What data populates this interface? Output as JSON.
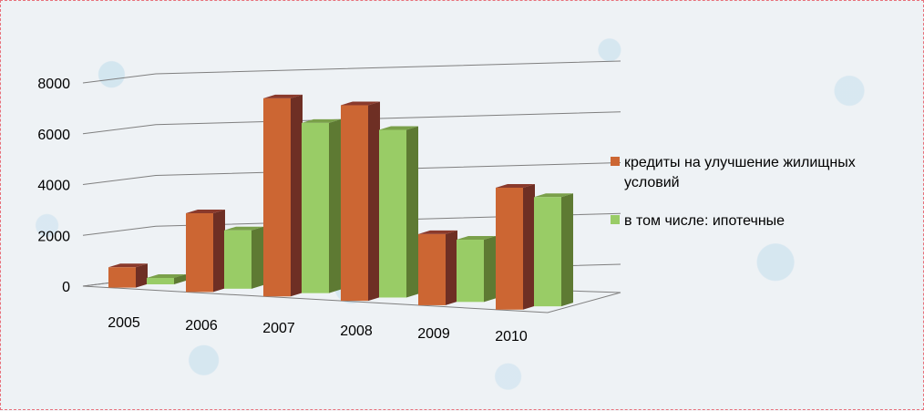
{
  "chart_data": {
    "type": "bar",
    "title": "",
    "xlabel": "",
    "ylabel": "",
    "categories": [
      "2005",
      "2006",
      "2007",
      "2008",
      "2009",
      "2010"
    ],
    "series": [
      {
        "name": "кредиты на улучшение жилищных условий",
        "values": [
          800,
          3100,
          7800,
          7700,
          2800,
          4800
        ],
        "color": "#cc6633",
        "side_color": "#6e2f24",
        "top_color": "#8a3a2c"
      },
      {
        "name": "в том числе: ипотечные",
        "values": [
          250,
          2300,
          6700,
          6600,
          2450,
          4300
        ],
        "color": "#99cc66",
        "side_color": "#5e7a33",
        "top_color": "#7aa04a"
      }
    ],
    "yticks": [
      "0",
      "2000",
      "4000",
      "6000",
      "8000"
    ],
    "ylim": [
      0,
      8000
    ],
    "legend_position": "right",
    "grid": true,
    "style": "3d-clustered-column"
  }
}
